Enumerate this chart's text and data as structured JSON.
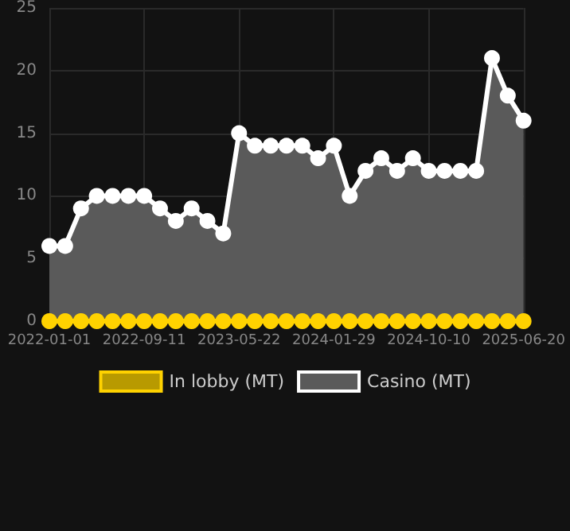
{
  "chart_data": {
    "type": "area",
    "categories": [
      "2022-01-01",
      null,
      null,
      null,
      null,
      null,
      "2022-09-11",
      null,
      null,
      null,
      null,
      null,
      "2023-05-22",
      null,
      null,
      null,
      null,
      null,
      "2024-01-29",
      null,
      null,
      null,
      null,
      null,
      "2024-10-10",
      null,
      null,
      null,
      null,
      null,
      "2025-06-20"
    ],
    "series": [
      {
        "name": "In lobby (MT)",
        "type": "line",
        "color": "#ffd200",
        "values": [
          0,
          0,
          0,
          0,
          0,
          0,
          0,
          0,
          0,
          0,
          0,
          0,
          0,
          0,
          0,
          0,
          0,
          0,
          0,
          0,
          0,
          0,
          0,
          0,
          0,
          0,
          0,
          0,
          0,
          0,
          0
        ]
      },
      {
        "name": "Casino (MT)",
        "color": "#ffffff",
        "values": [
          6,
          6,
          9,
          10,
          10,
          10,
          10,
          9,
          8,
          9,
          8,
          7,
          15,
          14,
          14,
          14,
          14,
          13,
          14,
          10,
          12,
          13,
          12,
          13,
          12,
          12,
          12,
          12,
          21,
          18,
          16
        ]
      }
    ],
    "ylim": [
      0,
      25
    ],
    "yticks": [
      0,
      5,
      10,
      15,
      20,
      25
    ],
    "grid": true,
    "legend": "bottom",
    "marker": "circle"
  }
}
